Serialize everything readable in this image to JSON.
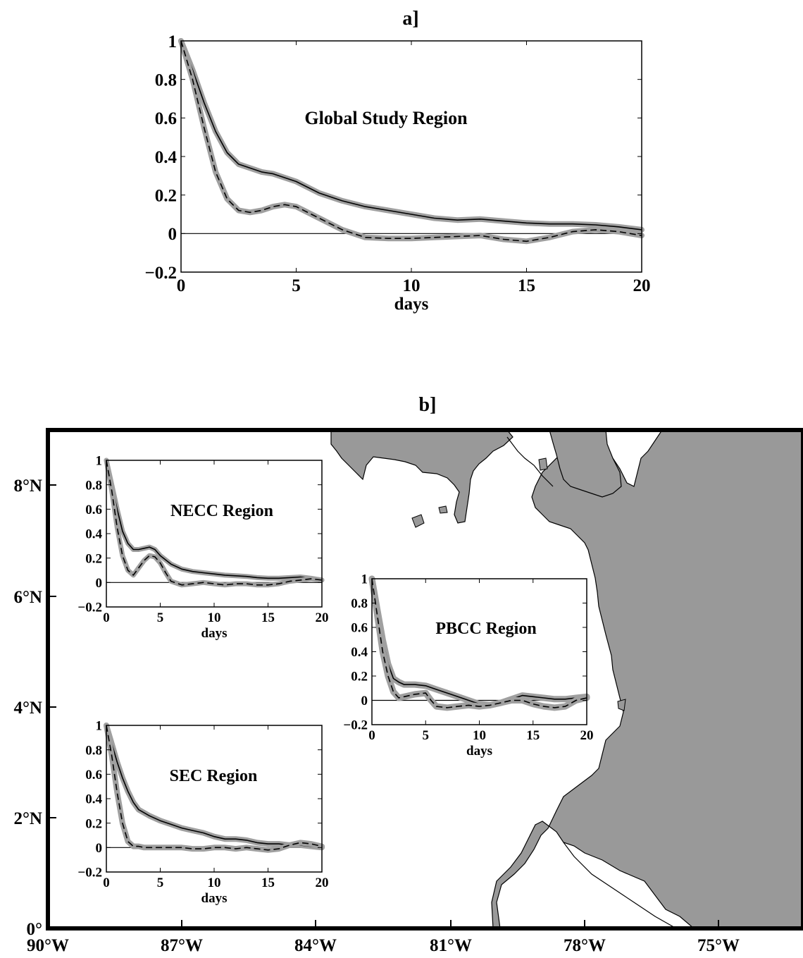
{
  "panel_a": {
    "label": "a]",
    "xticks": [
      "0",
      "5",
      "10",
      "15",
      "20"
    ],
    "yticks": [
      "1",
      "0.8",
      "0.6",
      "0.4",
      "0.2",
      "0",
      "−0.2"
    ],
    "xlabel": "days"
  },
  "panel_b": {
    "label": "b]",
    "lat_ticks": [
      "8°N",
      "6°N",
      "4°N",
      "2°N",
      "0°"
    ],
    "lon_ticks": [
      "90°W",
      "87°W",
      "84°W",
      "81°W",
      "78°W",
      "75°W"
    ],
    "inset_xticks": [
      "0",
      "5",
      "10",
      "15",
      "20"
    ],
    "inset_yticks": [
      "1",
      "0.8",
      "0.6",
      "0.4",
      "0.2",
      "0",
      "−0.2"
    ],
    "inset_xlabel": "days"
  },
  "colors": {
    "land": "#999999",
    "band": "#a0a0a0",
    "line": "#000000"
  },
  "chart_data": [
    {
      "type": "line",
      "title": "Global Study Region",
      "xlabel": "days",
      "ylabel": "",
      "xlim": [
        0,
        20
      ],
      "ylim": [
        -0.2,
        1
      ],
      "series": [
        {
          "style": "solid",
          "x": [
            0,
            0.5,
            1,
            1.5,
            2,
            2.5,
            3,
            3.5,
            4,
            5,
            6,
            7,
            8,
            9,
            10,
            11,
            12,
            13,
            14,
            15,
            16,
            17,
            18,
            19,
            20
          ],
          "y": [
            1,
            0.85,
            0.68,
            0.53,
            0.42,
            0.36,
            0.34,
            0.32,
            0.31,
            0.27,
            0.21,
            0.17,
            0.14,
            0.12,
            0.1,
            0.08,
            0.07,
            0.075,
            0.065,
            0.055,
            0.05,
            0.05,
            0.045,
            0.035,
            0.02
          ]
        },
        {
          "style": "dashed",
          "x": [
            0,
            0.5,
            1,
            1.5,
            2,
            2.5,
            3,
            3.5,
            4,
            4.5,
            5,
            6,
            7,
            8,
            9,
            10,
            11,
            12,
            13,
            14,
            15,
            16,
            17,
            18,
            19,
            20
          ],
          "y": [
            1,
            0.8,
            0.55,
            0.32,
            0.18,
            0.12,
            0.11,
            0.12,
            0.14,
            0.15,
            0.14,
            0.08,
            0.02,
            -0.02,
            -0.025,
            -0.025,
            -0.02,
            -0.015,
            -0.01,
            -0.03,
            -0.04,
            -0.02,
            0.01,
            0.02,
            0.01,
            -0.01
          ]
        }
      ]
    },
    {
      "type": "line",
      "title": "NECC Region",
      "xlabel": "days",
      "xlim": [
        0,
        20
      ],
      "ylim": [
        -0.2,
        1
      ],
      "series": [
        {
          "style": "solid",
          "x": [
            0,
            0.5,
            1,
            1.5,
            2,
            2.5,
            3,
            3.5,
            4,
            4.5,
            5,
            6,
            7,
            8,
            9,
            10,
            11,
            12,
            13,
            14,
            15,
            16,
            17,
            18,
            19,
            20
          ],
          "y": [
            1,
            0.8,
            0.6,
            0.42,
            0.32,
            0.27,
            0.27,
            0.28,
            0.29,
            0.27,
            0.22,
            0.15,
            0.11,
            0.09,
            0.08,
            0.07,
            0.06,
            0.055,
            0.05,
            0.04,
            0.035,
            0.035,
            0.04,
            0.045,
            0.035,
            0.02
          ]
        },
        {
          "style": "dashed",
          "x": [
            0,
            0.5,
            1,
            1.5,
            2,
            2.5,
            3,
            3.5,
            4,
            4.5,
            5,
            5.5,
            6,
            7,
            8,
            9,
            10,
            11,
            12,
            13,
            14,
            15,
            16,
            17,
            18,
            19,
            20
          ],
          "y": [
            1,
            0.75,
            0.45,
            0.22,
            0.1,
            0.06,
            0.12,
            0.18,
            0.22,
            0.21,
            0.16,
            0.08,
            0.01,
            -0.02,
            -0.01,
            0,
            -0.01,
            -0.02,
            -0.01,
            -0.01,
            -0.02,
            -0.02,
            -0.01,
            0.01,
            0.02,
            0.03,
            0.02
          ]
        }
      ]
    },
    {
      "type": "line",
      "title": "PBCC Region",
      "xlabel": "days",
      "xlim": [
        0,
        20
      ],
      "ylim": [
        -0.2,
        1
      ],
      "series": [
        {
          "style": "solid",
          "x": [
            0,
            0.5,
            1,
            1.5,
            2,
            2.5,
            3,
            4,
            5,
            6,
            7,
            8,
            9,
            10,
            11,
            12,
            13,
            14,
            15,
            16,
            17,
            18,
            19,
            20
          ],
          "y": [
            1,
            0.75,
            0.5,
            0.3,
            0.18,
            0.15,
            0.13,
            0.13,
            0.12,
            0.09,
            0.06,
            0.03,
            0.0,
            -0.03,
            -0.04,
            -0.02,
            0.01,
            0.04,
            0.03,
            0.02,
            0.01,
            0.01,
            0.02,
            0.03
          ]
        },
        {
          "style": "dashed",
          "x": [
            0,
            0.5,
            1,
            1.5,
            2,
            2.5,
            3,
            4,
            5,
            5.5,
            6,
            7,
            8,
            9,
            10,
            11,
            12,
            13,
            14,
            15,
            16,
            17,
            18,
            19,
            20
          ],
          "y": [
            1,
            0.7,
            0.4,
            0.2,
            0.07,
            0.02,
            0.03,
            0.05,
            0.06,
            0.0,
            -0.05,
            -0.06,
            -0.05,
            -0.04,
            -0.05,
            -0.04,
            -0.02,
            0.0,
            0.0,
            -0.03,
            -0.05,
            -0.06,
            -0.05,
            0.0,
            0.02
          ]
        }
      ]
    },
    {
      "type": "line",
      "title": "SEC Region",
      "xlabel": "days",
      "xlim": [
        0,
        20
      ],
      "ylim": [
        -0.2,
        1
      ],
      "series": [
        {
          "style": "solid",
          "x": [
            0,
            0.5,
            1,
            1.5,
            2,
            2.5,
            3,
            4,
            5,
            6,
            7,
            8,
            9,
            10,
            11,
            12,
            13,
            14,
            15,
            16,
            17,
            18,
            19,
            20
          ],
          "y": [
            1,
            0.85,
            0.7,
            0.57,
            0.46,
            0.37,
            0.31,
            0.26,
            0.22,
            0.19,
            0.16,
            0.14,
            0.12,
            0.09,
            0.07,
            0.07,
            0.06,
            0.04,
            0.03,
            0.03,
            0.02,
            0.02,
            0.01,
            0.0
          ]
        },
        {
          "style": "dashed",
          "x": [
            0,
            0.5,
            1,
            1.5,
            2,
            2.5,
            3,
            3.5,
            4,
            5,
            6,
            7,
            8,
            9,
            10,
            11,
            12,
            13,
            14,
            15,
            16,
            17,
            18,
            19,
            20
          ],
          "y": [
            1,
            0.75,
            0.45,
            0.2,
            0.05,
            0.01,
            0.01,
            0.0,
            0.0,
            0.0,
            0.0,
            0.0,
            -0.01,
            -0.01,
            0.0,
            0.0,
            -0.01,
            0.0,
            -0.01,
            -0.02,
            -0.01,
            0.02,
            0.04,
            0.03,
            0.01
          ]
        }
      ]
    }
  ]
}
